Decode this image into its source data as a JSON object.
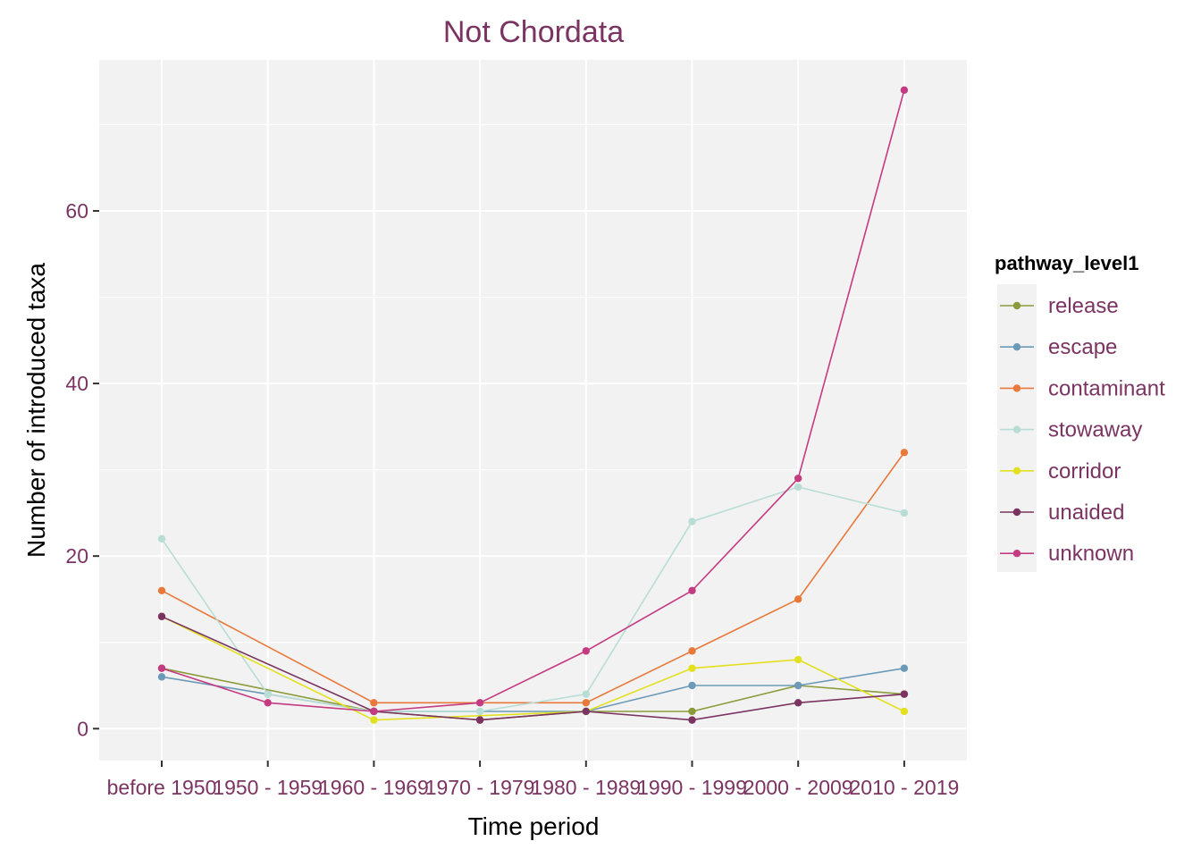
{
  "chart_data": {
    "type": "line",
    "title": "Not Chordata",
    "xlabel": "Time period",
    "ylabel": "Number of introduced taxa",
    "categories": [
      "before 1950",
      "1950 - 1959",
      "1960 - 1969",
      "1970 - 1979",
      "1980 - 1989",
      "1990 - 1999",
      "2000 - 2009",
      "2010 - 2019"
    ],
    "ylim": [
      -3.7,
      77.5
    ],
    "yticks": [
      0,
      20,
      40,
      60
    ],
    "grid": true,
    "legend": {
      "title": "pathway_level1",
      "position": "right"
    },
    "series": [
      {
        "name": "release",
        "color": "#8B9A3A",
        "points": [
          [
            0,
            7
          ],
          [
            2,
            2
          ],
          [
            3,
            1
          ],
          [
            4,
            2
          ],
          [
            5,
            2
          ],
          [
            6,
            5
          ],
          [
            7,
            4
          ]
        ]
      },
      {
        "name": "escape",
        "color": "#6B9AB8",
        "points": [
          [
            0,
            6
          ],
          [
            1,
            4
          ],
          [
            2,
            2
          ],
          [
            4,
            2
          ],
          [
            5,
            5
          ],
          [
            6,
            5
          ],
          [
            7,
            7
          ]
        ]
      },
      {
        "name": "contaminant",
        "color": "#E8793A",
        "points": [
          [
            0,
            16
          ],
          [
            2,
            3
          ],
          [
            4,
            3
          ],
          [
            5,
            9
          ],
          [
            6,
            15
          ],
          [
            7,
            32
          ]
        ]
      },
      {
        "name": "stowaway",
        "color": "#B8DDD5",
        "points": [
          [
            0,
            22
          ],
          [
            1,
            4
          ],
          [
            2,
            2
          ],
          [
            3,
            2
          ],
          [
            4,
            4
          ],
          [
            5,
            24
          ],
          [
            6,
            28
          ],
          [
            7,
            25
          ]
        ]
      },
      {
        "name": "corridor",
        "color": "#E3E01F",
        "points": [
          [
            0,
            13
          ],
          [
            2,
            1
          ],
          [
            4,
            2
          ],
          [
            5,
            7
          ],
          [
            6,
            8
          ],
          [
            7,
            2
          ]
        ]
      },
      {
        "name": "unaided",
        "color": "#7B3461",
        "points": [
          [
            0,
            13
          ],
          [
            2,
            2
          ],
          [
            3,
            1
          ],
          [
            4,
            2
          ],
          [
            5,
            1
          ],
          [
            6,
            3
          ],
          [
            7,
            4
          ]
        ]
      },
      {
        "name": "unknown",
        "color": "#C43B82",
        "points": [
          [
            0,
            7
          ],
          [
            1,
            3
          ],
          [
            2,
            2
          ],
          [
            3,
            3
          ],
          [
            4,
            9
          ],
          [
            5,
            16
          ],
          [
            6,
            29
          ],
          [
            7,
            74
          ]
        ]
      }
    ]
  }
}
